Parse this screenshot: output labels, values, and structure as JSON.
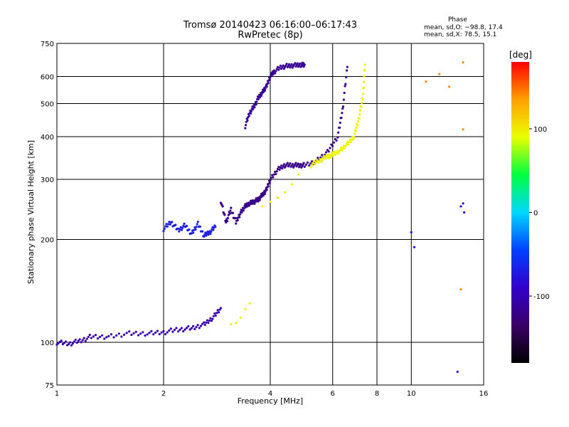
{
  "chart_data": {
    "type": "scatter",
    "title": "Tromsø 20140423 06:16:00–06:17:43",
    "subtitle": "RwPretec (8p)",
    "xlabel": "Frequency [MHz]",
    "ylabel": "Stationary phase Virtual Height [km]",
    "xscale": "log",
    "yscale": "log",
    "xlim": [
      1,
      16
    ],
    "ylim": [
      75,
      750
    ],
    "x_ticks": [
      1,
      2,
      4,
      6,
      8,
      10,
      16
    ],
    "y_ticks": [
      75,
      100,
      200,
      300,
      400,
      500,
      600,
      750
    ],
    "grid": true,
    "phase_legend": {
      "title": "Phase",
      "line_o": "mean, sd,O: −98.8, 17.4",
      "line_x": "mean, sd,X:  78.5, 15.1"
    },
    "colorbar": {
      "label": "[deg]",
      "range": [
        -180,
        180
      ],
      "ticks": [
        100,
        0,
        -100
      ],
      "colormap": [
        "#000000",
        "#3a0068",
        "#3300cc",
        "#0040ff",
        "#00d8ff",
        "#00ff40",
        "#eaff00",
        "#ffa000",
        "#ff0000"
      ]
    },
    "series": [
      {
        "x": [
          1.0,
          1.08,
          1.16,
          1.25,
          1.4,
          1.6,
          1.8,
          2.0,
          2.2,
          2.4,
          2.6,
          2.75,
          2.9
        ],
        "y": [
          100,
          99,
          101,
          104,
          104,
          106,
          106,
          107,
          109,
          110,
          113,
          118,
          126
        ],
        "phase": -105
      },
      {
        "x": [
          2.0,
          2.1,
          2.2,
          2.3,
          2.4,
          2.5,
          2.6,
          2.7,
          2.8
        ],
        "y": [
          215,
          225,
          213,
          220,
          208,
          222,
          205,
          210,
          218
        ],
        "phase": -70
      },
      {
        "x": [
          2.9,
          3.0,
          3.1,
          3.2,
          3.3,
          3.4,
          3.5,
          3.6,
          3.7,
          3.8,
          3.9,
          4.0,
          4.2,
          4.4,
          4.6,
          4.8,
          5.0,
          5.4,
          5.8,
          6.2,
          6.4,
          6.6
        ],
        "y": [
          260,
          225,
          245,
          225,
          240,
          250,
          255,
          258,
          262,
          270,
          280,
          300,
          320,
          330,
          330,
          330,
          330,
          340,
          360,
          400,
          480,
          640
        ],
        "phase": -120
      },
      {
        "x": [
          3.4,
          3.5,
          3.6,
          3.7,
          3.8,
          3.9,
          4.0,
          4.1,
          4.3,
          4.5,
          4.7,
          4.9,
          5.0
        ],
        "y": [
          430,
          470,
          490,
          520,
          540,
          560,
          600,
          620,
          640,
          645,
          648,
          650,
          650
        ],
        "phase": -115
      },
      {
        "x": [
          5.2,
          5.5,
          5.8,
          6.0,
          6.3,
          6.6,
          6.9,
          7.1,
          7.3,
          7.4
        ],
        "y": [
          330,
          340,
          350,
          355,
          365,
          380,
          400,
          450,
          520,
          650
        ],
        "phase": 95
      },
      {
        "x": [
          3.8,
          4.0,
          4.2,
          4.4,
          4.6,
          4.8
        ],
        "y": [
          250,
          258,
          265,
          275,
          290,
          310
        ],
        "phase": 95
      },
      {
        "x": [
          3.1,
          3.2,
          3.3,
          3.4,
          3.5
        ],
        "y": [
          113,
          114,
          118,
          125,
          130
        ],
        "phase": 95
      },
      {
        "x": [
          11.0,
          12.0,
          12.8,
          14.0,
          14.0,
          13.8
        ],
        "y": [
          580,
          610,
          560,
          420,
          660,
          143
        ],
        "phase": 140
      },
      {
        "x": [
          10.2,
          10.0,
          13.8,
          14.0,
          14.1,
          13.5
        ],
        "y": [
          190,
          210,
          250,
          255,
          240,
          82
        ],
        "phase": -80
      }
    ]
  }
}
